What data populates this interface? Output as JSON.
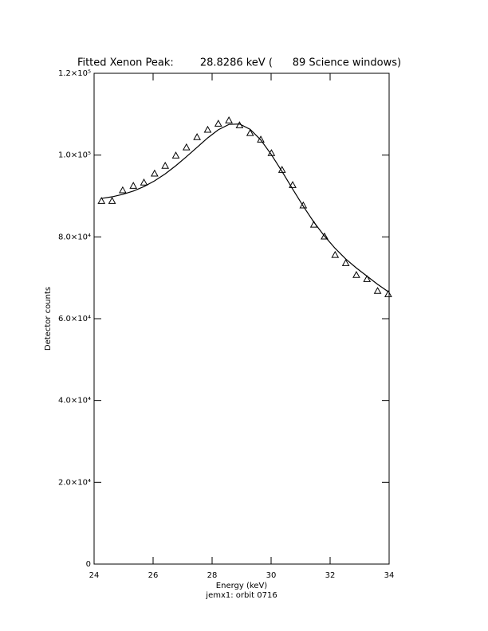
{
  "chart_data": {
    "type": "scatter",
    "title": "Fitted Xenon Peak:        28.8286 keV (      89 Science windows)",
    "x_label": "Energy (keV)",
    "subtitle": "jemx1: orbit 0716",
    "y_label": "Detector counts",
    "xlim": [
      24,
      34
    ],
    "xticks": [
      24,
      26,
      28,
      30,
      32,
      34
    ],
    "ylim": [
      0,
      120000
    ],
    "yticks": [
      0,
      {
        "value": 20000,
        "label": "2.0×10⁴"
      },
      {
        "value": 40000,
        "label": "4.0×10⁴"
      },
      {
        "value": 60000,
        "label": "6.0×10⁴"
      },
      {
        "value": 80000,
        "label": "8.0×10⁴"
      },
      {
        "value": 100000,
        "label": "1.0×10⁵"
      },
      {
        "value": 120000,
        "label": "1.2×10⁵"
      }
    ],
    "x": [
      24.25,
      24.61,
      24.97,
      25.33,
      25.69,
      26.05,
      26.41,
      26.77,
      27.13,
      27.49,
      27.85,
      28.21,
      28.57,
      28.93,
      29.29,
      29.65,
      30.01,
      30.37,
      30.73,
      31.09,
      31.45,
      31.81,
      32.17,
      32.53,
      32.89,
      33.25,
      33.61,
      33.97
    ],
    "series": [
      {
        "marker": "triangle",
        "color": "#000000",
        "values": [
          88800,
          88800,
          91400,
          92500,
          93300,
          95500,
          97400,
          99900,
          101900,
          104400,
          106200,
          107700,
          108500,
          107300,
          105400,
          103800,
          100500,
          96400,
          92700,
          87700,
          83000,
          80100,
          75600,
          73600,
          70700,
          69700,
          66800,
          66000
        ]
      },
      {
        "marker": "line",
        "color": "#000000",
        "values": [
          89400,
          89800,
          90400,
          91200,
          92300,
          93700,
          95400,
          97400,
          99600,
          101900,
          104200,
          106200,
          107500,
          107600,
          106300,
          103700,
          100100,
          96000,
          91700,
          87500,
          83600,
          80200,
          77200,
          74600,
          72400,
          70400,
          68400,
          66600
        ]
      }
    ]
  }
}
